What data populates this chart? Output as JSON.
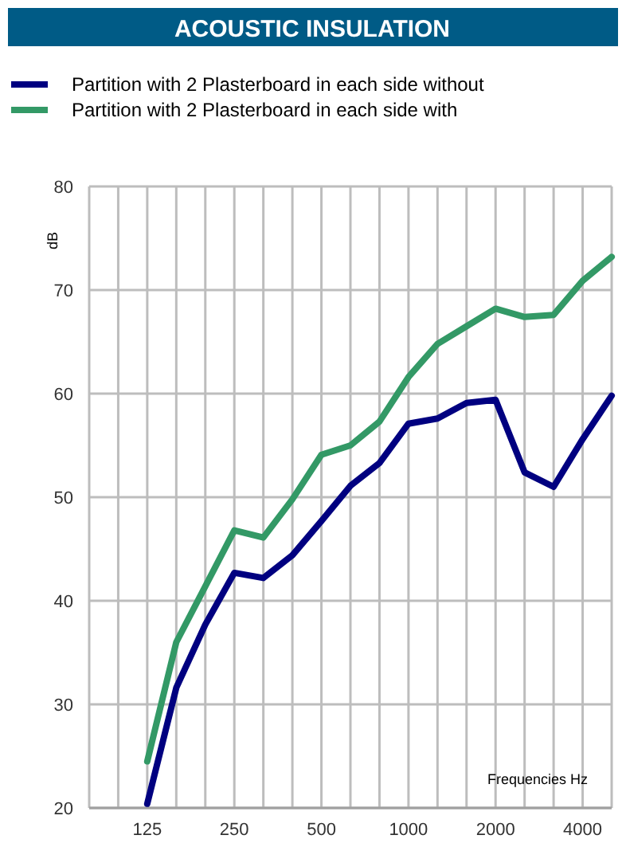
{
  "chart_data": {
    "type": "line",
    "title": "ACOUSTIC INSULATION",
    "ylabel": "dB",
    "xlabel": "Frequencies Hz",
    "categories": [
      null,
      null,
      "125",
      null,
      null,
      "250",
      null,
      null,
      "500",
      null,
      null,
      "1000",
      null,
      null,
      "2000",
      null,
      null,
      "4000",
      null
    ],
    "series": [
      {
        "name": "Partition with 2 Plasterboard in each side without",
        "color": "#000080",
        "values": [
          null,
          null,
          20.4,
          31.6,
          37.7,
          42.7,
          42.2,
          44.4,
          47.7,
          51.1,
          53.3,
          57.1,
          57.6,
          59.1,
          59.4,
          52.4,
          51.0,
          55.6,
          59.8
        ]
      },
      {
        "name": "Partition with 2 Plasterboard in each side with",
        "color": "#339966",
        "values": [
          null,
          null,
          24.5,
          36.0,
          41.4,
          46.8,
          46.1,
          49.8,
          54.1,
          55.0,
          57.3,
          61.6,
          64.8,
          66.5,
          68.2,
          67.4,
          67.6,
          70.9,
          73.2
        ]
      }
    ],
    "ylim": [
      20,
      80
    ],
    "yticks": [
      20,
      30,
      40,
      50,
      60,
      70,
      80
    ],
    "grid": true,
    "legend": "top",
    "marker": "none",
    "line_style": "solid"
  }
}
